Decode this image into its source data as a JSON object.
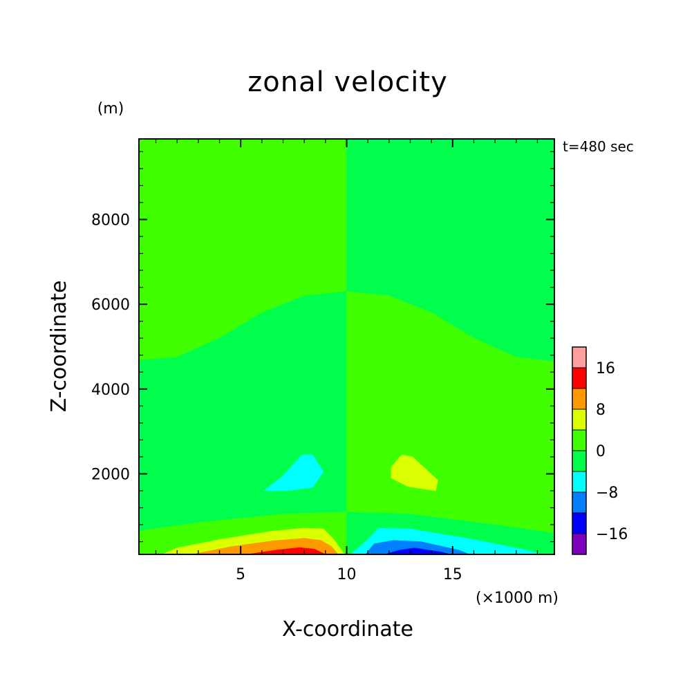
{
  "chart_data": {
    "type": "heatmap",
    "title": "zonal velocity",
    "xlabel": "X-coordinate",
    "ylabel": "Z-coordinate",
    "x_unit": "(×1000 m)",
    "y_unit": "(m)",
    "time_label": "t=480 sec",
    "xlim": [
      0.2,
      19.8
    ],
    "ylim": [
      100,
      9900
    ],
    "x_ticks": [
      5,
      10,
      15
    ],
    "y_ticks": [
      2000,
      4000,
      6000,
      8000
    ],
    "x_tick_labels": [
      "5",
      "10",
      "15"
    ],
    "y_tick_labels": [
      "2000",
      "4000",
      "6000",
      "8000"
    ],
    "colorbar": {
      "levels": [
        -20,
        -16,
        -12,
        -8,
        -4,
        0,
        4,
        8,
        12,
        16,
        20
      ],
      "colors": [
        "#7f00bf",
        "#0000ff",
        "#0080ff",
        "#00ffff",
        "#00ff4c",
        "#40ff00",
        "#d9ff00",
        "#ff9900",
        "#ff0000",
        "#ff9f9f"
      ],
      "tick_values": [
        -16,
        -8,
        0,
        8,
        16
      ],
      "tick_labels": [
        "−16",
        "−8",
        "0",
        "8",
        "16"
      ]
    },
    "regions": [
      {
        "level": "0 to 4",
        "color": "#40ff00",
        "poly": [
          [
            0.2,
            9900
          ],
          [
            10,
            9900
          ],
          [
            10,
            6300
          ],
          [
            8,
            6200
          ],
          [
            6,
            5800
          ],
          [
            4,
            5200
          ],
          [
            2,
            4750
          ],
          [
            0.2,
            4680
          ]
        ]
      },
      {
        "level": "-4 to 0",
        "color": "#00ff4c",
        "poly": [
          [
            10,
            9900
          ],
          [
            19.8,
            9900
          ],
          [
            19.8,
            4650
          ],
          [
            18,
            4750
          ],
          [
            16,
            5200
          ],
          [
            14,
            5800
          ],
          [
            12,
            6200
          ],
          [
            10,
            6300
          ]
        ]
      },
      {
        "level": "-4 to 0",
        "color": "#00ff4c",
        "poly": [
          [
            0.2,
            4680
          ],
          [
            2,
            4750
          ],
          [
            4,
            5200
          ],
          [
            6,
            5800
          ],
          [
            8,
            6200
          ],
          [
            10,
            6300
          ],
          [
            10,
            1100
          ],
          [
            7,
            1050
          ],
          [
            3,
            850
          ],
          [
            0.2,
            650
          ]
        ]
      },
      {
        "level": "0 to 4",
        "color": "#40ff00",
        "poly": [
          [
            10,
            6300
          ],
          [
            12,
            6200
          ],
          [
            14,
            5800
          ],
          [
            16,
            5200
          ],
          [
            18,
            4750
          ],
          [
            19.8,
            4650
          ],
          [
            19.8,
            600
          ],
          [
            17,
            800
          ],
          [
            13,
            1050
          ],
          [
            10,
            1100
          ]
        ]
      },
      {
        "level": "-8 to -4",
        "color": "#00ffff",
        "poly": [
          [
            6.1,
            1600
          ],
          [
            7,
            1950
          ],
          [
            7.9,
            2450
          ],
          [
            8.4,
            2450
          ],
          [
            8.9,
            2050
          ],
          [
            8.4,
            1680
          ],
          [
            7.2,
            1600
          ]
        ]
      },
      {
        "level": "4 to 8",
        "color": "#d9ff00",
        "poly": [
          [
            12.1,
            2150
          ],
          [
            12.6,
            2450
          ],
          [
            13.1,
            2400
          ],
          [
            14.3,
            1850
          ],
          [
            14.2,
            1600
          ],
          [
            12.9,
            1700
          ],
          [
            12.1,
            1900
          ]
        ]
      },
      {
        "level": "0 to 4",
        "color": "#40ff00",
        "poly": [
          [
            0.2,
            650
          ],
          [
            3,
            850
          ],
          [
            7,
            1050
          ],
          [
            10,
            1100
          ],
          [
            10,
            100
          ],
          [
            0.2,
            100
          ]
        ]
      },
      {
        "level": "-4 to 0",
        "color": "#00ff4c",
        "poly": [
          [
            10,
            1100
          ],
          [
            13,
            1050
          ],
          [
            17,
            800
          ],
          [
            19.8,
            600
          ],
          [
            19.8,
            100
          ],
          [
            10,
            100
          ]
        ]
      },
      {
        "level": "4 to 8",
        "color": "#d9ff00",
        "poly": [
          [
            1.3,
            100
          ],
          [
            2,
            250
          ],
          [
            4,
            450
          ],
          [
            6.5,
            650
          ],
          [
            8,
            720
          ],
          [
            8.9,
            700
          ],
          [
            9.4,
            450
          ],
          [
            9.9,
            100
          ]
        ]
      },
      {
        "level": "8 to 12",
        "color": "#ff9900",
        "poly": [
          [
            2.7,
            100
          ],
          [
            4.5,
            280
          ],
          [
            6.5,
            420
          ],
          [
            8,
            480
          ],
          [
            8.8,
            430
          ],
          [
            9.3,
            280
          ],
          [
            9.6,
            100
          ]
        ]
      },
      {
        "level": "12 to 16",
        "color": "#ff0000",
        "poly": [
          [
            5.3,
            100
          ],
          [
            6.8,
            210
          ],
          [
            7.8,
            260
          ],
          [
            8.5,
            220
          ],
          [
            9,
            100
          ]
        ]
      },
      {
        "level": "-8 to -4",
        "color": "#00ffff",
        "poly": [
          [
            10.2,
            100
          ],
          [
            11,
            450
          ],
          [
            11.5,
            720
          ],
          [
            13,
            700
          ],
          [
            16,
            450
          ],
          [
            18.5,
            200
          ],
          [
            19.2,
            100
          ]
        ]
      },
      {
        "level": "-12 to -8",
        "color": "#0080ff",
        "poly": [
          [
            10.9,
            100
          ],
          [
            11.3,
            350
          ],
          [
            12.2,
            430
          ],
          [
            13.5,
            400
          ],
          [
            15.3,
            200
          ],
          [
            15.8,
            100
          ]
        ]
      },
      {
        "level": "-16 to -12",
        "color": "#0000ff",
        "poly": [
          [
            11.8,
            100
          ],
          [
            12.5,
            200
          ],
          [
            13.2,
            250
          ],
          [
            14.5,
            150
          ],
          [
            14.9,
            100
          ]
        ]
      }
    ]
  }
}
